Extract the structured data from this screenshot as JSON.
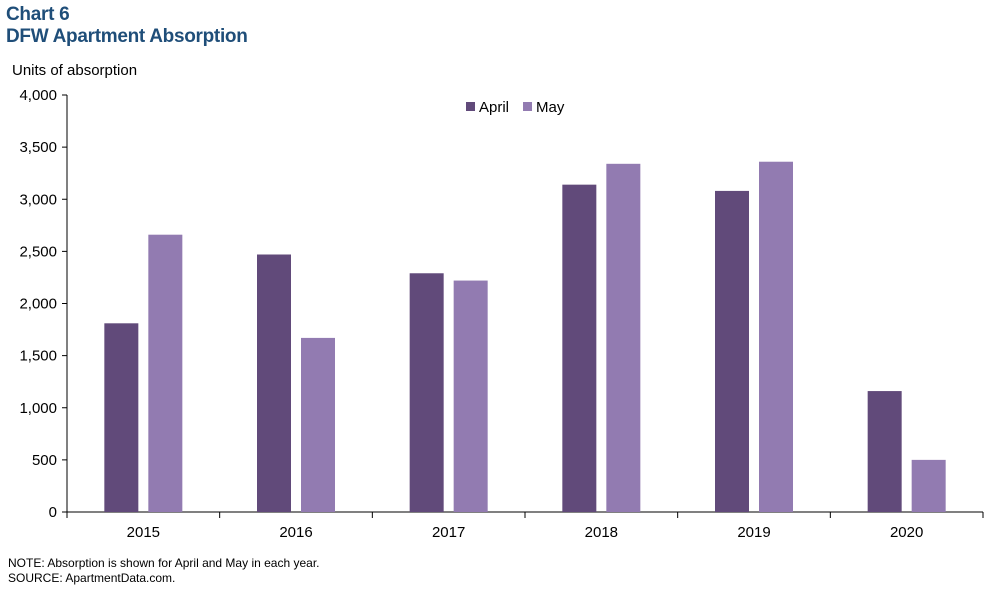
{
  "header": {
    "chart_number": "Chart 6",
    "title": "DFW Apartment Absorption"
  },
  "footer": {
    "note": "NOTE: Absorption is shown for April and May in each year.",
    "source": "SOURCE: ApartmentData.com."
  },
  "chart_data": {
    "type": "bar",
    "title": "DFW Apartment Absorption",
    "xlabel": "",
    "ylabel": "Units of absorption",
    "categories": [
      "2015",
      "2016",
      "2017",
      "2018",
      "2019",
      "2020"
    ],
    "series": [
      {
        "name": "April",
        "color": "#614a7a",
        "values": [
          1810,
          2470,
          2290,
          3140,
          3080,
          1160
        ]
      },
      {
        "name": "May",
        "color": "#927bb1",
        "values": [
          2660,
          1670,
          2220,
          3340,
          3360,
          500
        ]
      }
    ],
    "ylim": [
      0,
      4000
    ],
    "yticks": [
      0,
      500,
      1000,
      1500,
      2000,
      2500,
      3000,
      3500,
      4000
    ],
    "ytick_labels": [
      "0",
      "500",
      "1,000",
      "1,500",
      "2,000",
      "2,500",
      "3,000",
      "3,500",
      "4,000"
    ],
    "grid": false,
    "legend_position": "top-center"
  }
}
